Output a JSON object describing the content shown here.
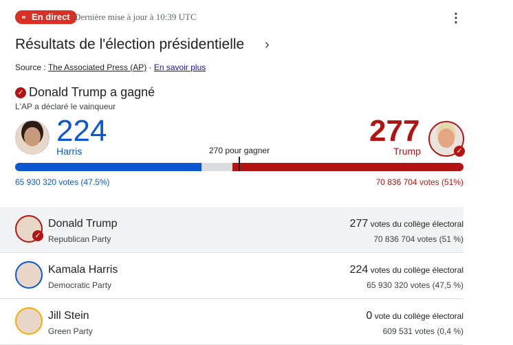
{
  "header": {
    "live_label": "En direct",
    "updated": "Dernière mise à jour à 10:39 UTC",
    "more_icon": "more-vert-icon"
  },
  "title": "Résultats de l'élection présidentielle",
  "source": {
    "prefix": "Source : ",
    "name": "The Associated Press (AP)",
    "sep": " · ",
    "learn_more": "En savoir plus"
  },
  "winner": {
    "text": "Donald Trump a gagné",
    "sub": "L'AP a déclaré le vainqueur"
  },
  "summary": {
    "harris": {
      "ev": "224",
      "label": "Harris",
      "votes": "65 930 320 votes (47.5%)",
      "color": "#0b57d0",
      "ev_value": 224
    },
    "trump": {
      "ev": "277",
      "label": "Trump",
      "votes": "70 836 704 votes (51%)",
      "color": "#b31412",
      "ev_value": 277
    },
    "to_win": "270 pour gagner",
    "total_ev": 538
  },
  "candidates": [
    {
      "name": "Donald Trump",
      "party": "Republican Party",
      "ev": "277",
      "ev_label": " votes du collège électoral",
      "popular": "70 836 704 votes (51 %)",
      "color": "#b31412",
      "winner": true
    },
    {
      "name": "Kamala Harris",
      "party": "Democratic Party",
      "ev": "224",
      "ev_label": " votes du collège électoral",
      "popular": "65 930 320 votes (47,5 %)",
      "color": "#0b57d0",
      "winner": false
    },
    {
      "name": "Jill Stein",
      "party": "Green Party",
      "ev": "0",
      "ev_label": " vote du collège électoral",
      "popular": "609 531 votes (0,4 %)",
      "color": "#f9ab00",
      "winner": false
    }
  ]
}
